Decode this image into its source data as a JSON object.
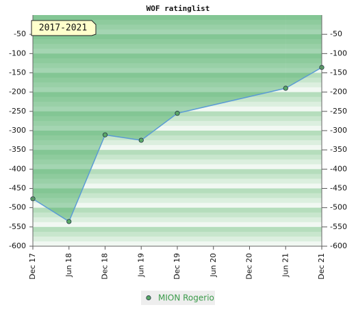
{
  "chart_data": {
    "type": "line",
    "title": "WOF ratinglist",
    "annotation": "2017-2021",
    "categories": [
      "Dec 17",
      "Jun 18",
      "Dec 18",
      "Jun 19",
      "Dec 19",
      "Jun 20",
      "Dec 20",
      "Jun 21",
      "Dec 21"
    ],
    "series": [
      {
        "name": "MION Rogerio",
        "color": "#5b9bd5",
        "marker_color": "#5aa867",
        "values": [
          -477,
          -536,
          -311,
          -325,
          -255,
          null,
          null,
          -190,
          -136
        ]
      }
    ],
    "connect_gaps": true,
    "ylim": [
      -600,
      0
    ],
    "yticks": [
      -50,
      -100,
      -150,
      -200,
      -250,
      -300,
      -350,
      -400,
      -450,
      -500,
      -550,
      -600
    ]
  }
}
